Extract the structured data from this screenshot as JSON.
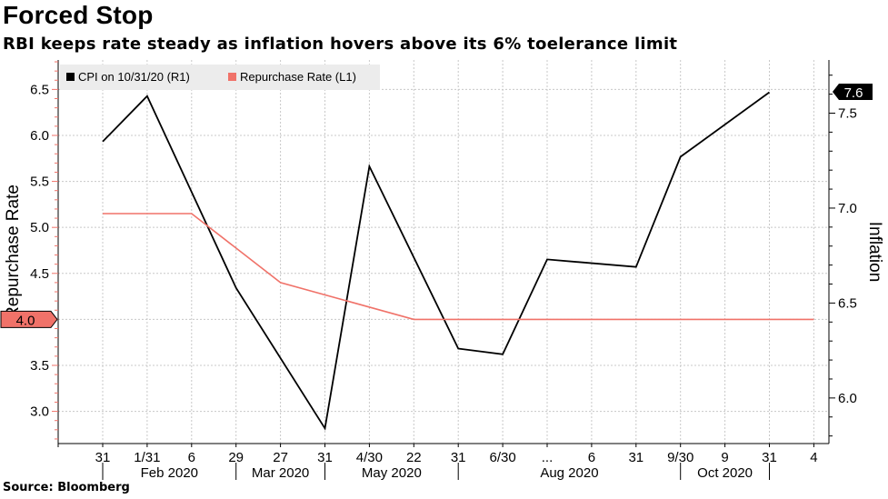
{
  "header": {
    "title": "Forced Stop",
    "subtitle": "RBI keeps rate steady as inflation hovers above its 6% toelerance limit"
  },
  "footer": {
    "source": "Source: Bloomberg"
  },
  "colors": {
    "cpi": "#000000",
    "repo": "#f07269",
    "grid": "#c8c8c8",
    "legend_bg": "#ececec"
  },
  "chart_data": {
    "type": "line",
    "x_ticks": [
      "31",
      "1/31",
      "6",
      "29",
      "27",
      "31",
      "4/30",
      "22",
      "31",
      "6/30",
      "...",
      "6",
      "31",
      "9/30",
      "9",
      "31",
      "4"
    ],
    "x_groups": [
      "Feb 2020",
      "Mar 2020",
      "May 2020",
      "Aug 2020",
      "Oct 2020"
    ],
    "series": [
      {
        "name": "CPI on 10/31/20 (R1)",
        "axis": "right",
        "x_index": [
          0,
          1,
          3,
          5,
          6,
          8,
          9,
          10,
          12,
          13,
          15
        ],
        "values": [
          7.35,
          7.59,
          6.58,
          5.84,
          7.22,
          6.26,
          6.23,
          6.73,
          6.69,
          7.27,
          7.61
        ]
      },
      {
        "name": "Repurchase Rate (L1)",
        "axis": "left",
        "x_index": [
          0,
          2,
          4,
          7,
          16
        ],
        "values": [
          5.15,
          5.15,
          4.4,
          4.0,
          4.0
        ]
      }
    ],
    "ylabel": "Repurchase Rate",
    "y2label": "Inflation",
    "ylim": [
      2.65,
      6.82
    ],
    "y2lim": [
      5.76,
      7.78
    ],
    "yticks": [
      "3.0",
      "3.5",
      "4.0",
      "4.5",
      "5.0",
      "5.5",
      "6.0",
      "6.5"
    ],
    "y2ticks": [
      "6.0",
      "6.5",
      "7.0",
      "7.5"
    ],
    "last_value_labels": {
      "left": "4.0",
      "right": "7.6"
    },
    "legend": {
      "cpi_label": "CPI on 10/31/20 (R1)",
      "repo_label": "Repurchase Rate (L1)"
    }
  }
}
